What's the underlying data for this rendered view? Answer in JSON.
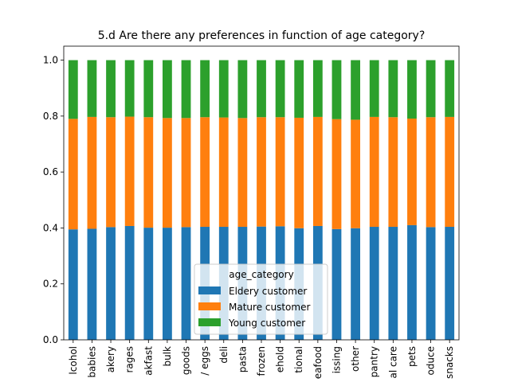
{
  "chart_data": {
    "type": "bar",
    "stacked": true,
    "title": "5.d Are there any preferences in function of age category?",
    "xlabel": "",
    "ylabel": "",
    "ylim": [
      0,
      1.05
    ],
    "yticks": [
      "0.0",
      "0.2",
      "0.4",
      "0.6",
      "0.8",
      "1.0"
    ],
    "grid": false,
    "legend": {
      "title": "age_category",
      "placement": "lower-center"
    },
    "categories": [
      "lcohol",
      "babies",
      "akery",
      "rages",
      "akfast",
      "bulk",
      "goods",
      "/ eggs",
      "deli",
      "pasta",
      "frozen",
      "ehold",
      "tional",
      "eafood",
      "issing",
      "other",
      "pantry",
      "al care",
      "pets",
      "oduce",
      "snacks"
    ],
    "series": [
      {
        "name": "Eldery customer",
        "color": "#1f77b4",
        "values": [
          0.395,
          0.397,
          0.403,
          0.407,
          0.401,
          0.401,
          0.403,
          0.404,
          0.404,
          0.404,
          0.405,
          0.406,
          0.399,
          0.407,
          0.396,
          0.399,
          0.404,
          0.404,
          0.41,
          0.403,
          0.404
        ]
      },
      {
        "name": "Mature customer",
        "color": "#ff7f0e",
        "values": [
          0.395,
          0.4,
          0.393,
          0.391,
          0.395,
          0.392,
          0.39,
          0.392,
          0.391,
          0.389,
          0.391,
          0.39,
          0.395,
          0.39,
          0.393,
          0.388,
          0.393,
          0.392,
          0.381,
          0.393,
          0.393
        ]
      },
      {
        "name": "Young customer",
        "color": "#2ca02c",
        "values": [
          0.21,
          0.203,
          0.204,
          0.202,
          0.204,
          0.207,
          0.207,
          0.204,
          0.205,
          0.207,
          0.204,
          0.204,
          0.206,
          0.203,
          0.211,
          0.213,
          0.203,
          0.204,
          0.209,
          0.204,
          0.203
        ]
      }
    ]
  }
}
